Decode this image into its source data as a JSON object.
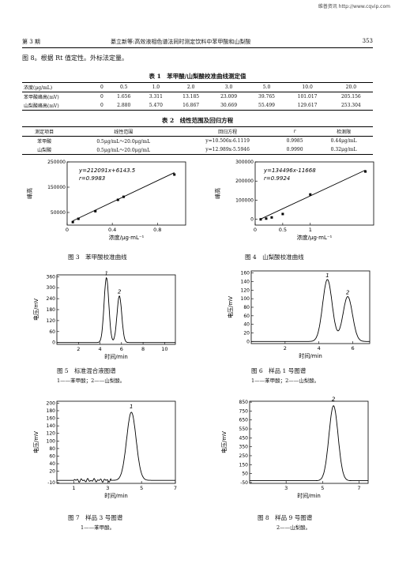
{
  "watermark": "维普资讯 http://www.cqvip.com",
  "header": {
    "issue": "第 3 期",
    "title": "綦立新等:高效液相色谱法同时测定饮料中苯甲酸和山梨酸",
    "page": "353"
  },
  "intro": "图 8。根据 Rt 值定性。外标法定量。",
  "table1": {
    "caption": "表 1　苯甲酸/山梨酸校准曲线测定值",
    "rows": [
      [
        "浓度(μg/mL)",
        "0",
        "0.5",
        "1.0",
        "2.0",
        "3.0",
        "5.0",
        "10.0",
        "20.0"
      ],
      [
        "苯甲酸峰高(mV)",
        "0",
        "1.656",
        "3.311",
        "13.185",
        "23.009",
        "39.765",
        "101.017",
        "205.156"
      ],
      [
        "山梨酸峰高(mV)",
        "0",
        "2.880",
        "5.470",
        "16.867",
        "30.669",
        "55.499",
        "129.617",
        "253.304"
      ]
    ]
  },
  "table2": {
    "caption": "表 2　线性范围及回归方程",
    "headers": [
      "测定项目",
      "线性范围",
      "回归方程",
      "r",
      "检测限"
    ],
    "rows": [
      [
        "苯甲酸",
        "0.5μg/mL～20.0μg/mL",
        "y=10.506x-6.1119",
        "0.9985",
        "0.44μg/mL"
      ],
      [
        "山梨酸",
        "0.5μg/mL～20.0μg/mL",
        "y=12.989x-5.5946",
        "0.9990",
        "0.32μg/mL"
      ]
    ]
  },
  "figures": {
    "fig3": {
      "caption": "图 3　苯甲酸校准曲线",
      "eq": "y=212091x+6143.5",
      "r": "r=0.9983"
    },
    "fig4": {
      "caption": "图 4　山梨酸校准曲线",
      "eq": "y=134496x-11668",
      "r": "r=0.9924"
    },
    "fig5": {
      "caption": "图 5　标准混合液图谱",
      "sub": "1——苯甲酸；2——山梨酸。"
    },
    "fig6": {
      "caption": "图 6　样品 1 号图谱",
      "sub": "1——苯甲酸；2——山梨酸。"
    },
    "fig7": {
      "caption": "图 7　样品 3 号图谱",
      "sub": "1——苯甲酸。"
    },
    "fig8": {
      "caption": "图 8　样品 9 号图谱",
      "sub": "2——山梨酸。"
    }
  },
  "chart_data": [
    {
      "type": "scatter",
      "id": "fig3",
      "xlabel": "浓度/μg·mL⁻¹",
      "ylabel": "峰高",
      "xticks": [
        "0",
        "0.4",
        "0.8"
      ],
      "yticks": [
        "50000",
        "150000",
        "250000"
      ],
      "xlim": [
        0,
        1.05
      ],
      "ylim": [
        0,
        250000
      ],
      "points": [
        [
          0.05,
          12000
        ],
        [
          0.1,
          25000
        ],
        [
          0.25,
          55000
        ],
        [
          0.45,
          100000
        ],
        [
          0.5,
          112000
        ],
        [
          0.95,
          200000
        ]
      ],
      "fit": {
        "slope": 212091,
        "intercept": 6143.5
      }
    },
    {
      "type": "scatter",
      "id": "fig4",
      "xlabel": "浓度/μg·mL⁻¹",
      "ylabel": "峰高",
      "xticks": [
        "0",
        "0.5",
        "1"
      ],
      "yticks": [
        "0",
        "100000",
        "200000",
        "300000"
      ],
      "xlim": [
        0,
        2.15
      ],
      "ylim": [
        -30000,
        300000
      ],
      "points": [
        [
          0.1,
          0
        ],
        [
          0.2,
          4000
        ],
        [
          0.3,
          10000
        ],
        [
          0.5,
          28000
        ],
        [
          1.0,
          130000
        ],
        [
          2.0,
          250000
        ]
      ],
      "fit": {
        "slope": 134496,
        "intercept": -11668
      }
    },
    {
      "type": "line",
      "id": "fig5",
      "xlabel": "时间/min",
      "ylabel": "电压/mV",
      "xticks": [
        "2",
        "4",
        "6",
        "8",
        "10"
      ],
      "yticks": [
        "0",
        "60",
        "120",
        "180",
        "240",
        "300",
        "360"
      ],
      "xlim": [
        0,
        11
      ],
      "ylim": [
        -10,
        370
      ],
      "peaks": [
        {
          "label": "1",
          "t": 4.6,
          "h": 355
        },
        {
          "label": "2",
          "t": 5.8,
          "h": 255
        }
      ]
    },
    {
      "type": "line",
      "id": "fig6",
      "xlabel": "时间/min",
      "ylabel": "电压/mV",
      "xticks": [
        "2",
        "4",
        "6"
      ],
      "yticks": [
        "0",
        "20",
        "40",
        "60",
        "80",
        "100",
        "120",
        "140",
        "160"
      ],
      "xlim": [
        0,
        7
      ],
      "ylim": [
        -5,
        165
      ],
      "peaks": [
        {
          "label": "1",
          "t": 4.5,
          "h": 145
        },
        {
          "label": "2",
          "t": 5.7,
          "h": 105
        }
      ]
    },
    {
      "type": "line",
      "id": "fig7",
      "xlabel": "时间/min",
      "ylabel": "电压/mV",
      "xticks": [
        "1",
        "3",
        "5",
        "7"
      ],
      "yticks": [
        "-10",
        "20",
        "40",
        "60",
        "80",
        "100",
        "120",
        "140",
        "160",
        "180",
        "200"
      ],
      "xlim": [
        0,
        7
      ],
      "ylim": [
        -12,
        205
      ],
      "peaks": [
        {
          "label": "1",
          "t": 4.4,
          "h": 180
        }
      ]
    },
    {
      "type": "line",
      "id": "fig8",
      "xlabel": "时间/min",
      "ylabel": "电压/mV",
      "xticks": [
        "3",
        "5",
        "7"
      ],
      "yticks": [
        "-50",
        "50",
        "150",
        "250",
        "350",
        "450",
        "550",
        "650",
        "750",
        "850"
      ],
      "xlim": [
        1,
        7.5
      ],
      "ylim": [
        -60,
        860
      ],
      "peaks": [
        {
          "label": "2",
          "t": 5.6,
          "h": 840
        }
      ]
    }
  ]
}
